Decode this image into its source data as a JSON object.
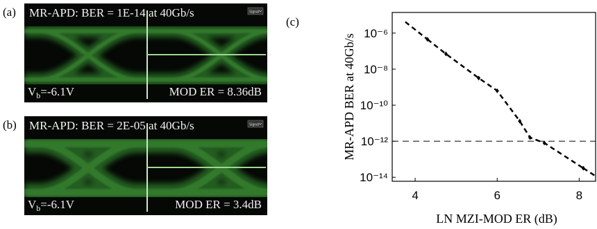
{
  "panels": [
    {
      "label": "(a)",
      "title": "MR-APD: BER = 1E-14 at 40Gb/s",
      "vb": "V",
      "vb_sub": "b",
      "vb_value": "=-6.1V",
      "mod_er": "MOD ER = 8.36dB",
      "button": "Signal"
    },
    {
      "label": "(b)",
      "title": "MR-APD: BER = 2E-05 at 40Gb/s",
      "vb": "V",
      "vb_sub": "b",
      "vb_value": "=-6.1V",
      "mod_er": "MOD ER = 3.4dB",
      "button": "Signal"
    }
  ],
  "chart_data": {
    "type": "line",
    "panel_label": "(c)",
    "x_label": "LN MZI-MOD ER (dB)",
    "y_label": "MR-APD BER at 40Gb/s",
    "x": [
      4.3,
      4.75,
      5.55,
      6.0,
      6.55,
      6.8,
      7.15,
      8.1
    ],
    "series": [
      {
        "color": "#000000",
        "values": [
          4.5e-07,
          7e-08,
          3.2e-09,
          6.3e-10,
          1.3e-11,
          1.6e-12,
          8e-13,
          3.2e-14
        ]
      }
    ],
    "reference_line": 1e-12,
    "log_y": true,
    "xlim": [
      3.44,
      8.4
    ],
    "xticks": [
      4,
      6,
      8
    ],
    "ylim": [
      6e-15,
      1.4e-05
    ],
    "yticks": [
      {
        "value": 1e-06,
        "label": "10⁻⁶"
      },
      {
        "value": 1e-08,
        "label": "10⁻⁸"
      },
      {
        "value": 1e-10,
        "label": "10⁻¹⁰"
      },
      {
        "value": 1e-12,
        "label": "10⁻¹²"
      },
      {
        "value": 1e-14,
        "label": "10⁻¹⁴"
      }
    ]
  }
}
